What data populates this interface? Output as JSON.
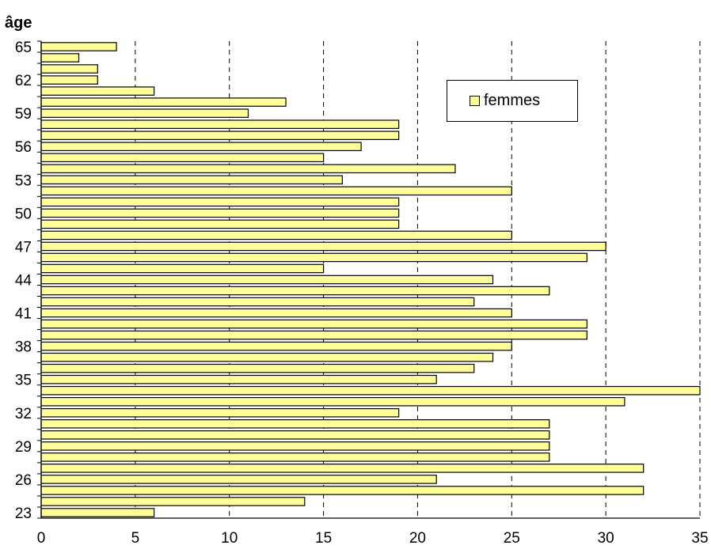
{
  "chart_data": {
    "type": "bar",
    "orientation": "horizontal",
    "ylabel": "âge",
    "xlabel": "",
    "xlim": [
      0,
      35
    ],
    "x_ticks": [
      "0",
      "5",
      "10",
      "15",
      "20",
      "25",
      "30",
      "35"
    ],
    "y_ticks": [
      "23",
      "26",
      "29",
      "32",
      "35",
      "38",
      "41",
      "44",
      "47",
      "50",
      "53",
      "56",
      "59",
      "62",
      "65"
    ],
    "grid": "vertical dashed",
    "legend_position": "top-right",
    "bar_color": "#ffff99",
    "categories": [
      23,
      24,
      25,
      26,
      27,
      28,
      29,
      30,
      31,
      32,
      33,
      34,
      35,
      36,
      37,
      38,
      39,
      40,
      41,
      42,
      43,
      44,
      45,
      46,
      47,
      48,
      49,
      50,
      51,
      52,
      53,
      54,
      55,
      56,
      57,
      58,
      59,
      60,
      61,
      62,
      63,
      64,
      65
    ],
    "series": [
      {
        "name": "femmes",
        "values": [
          6,
          14,
          32,
          21,
          32,
          27,
          27,
          27,
          27,
          19,
          31,
          35,
          21,
          23,
          24,
          25,
          29,
          29,
          25,
          23,
          27,
          24,
          15,
          29,
          30,
          25,
          19,
          19,
          19,
          25,
          16,
          22,
          15,
          17,
          19,
          19,
          11,
          13,
          6,
          3,
          3,
          2,
          4
        ]
      }
    ]
  },
  "legend": {
    "label": "femmes"
  }
}
